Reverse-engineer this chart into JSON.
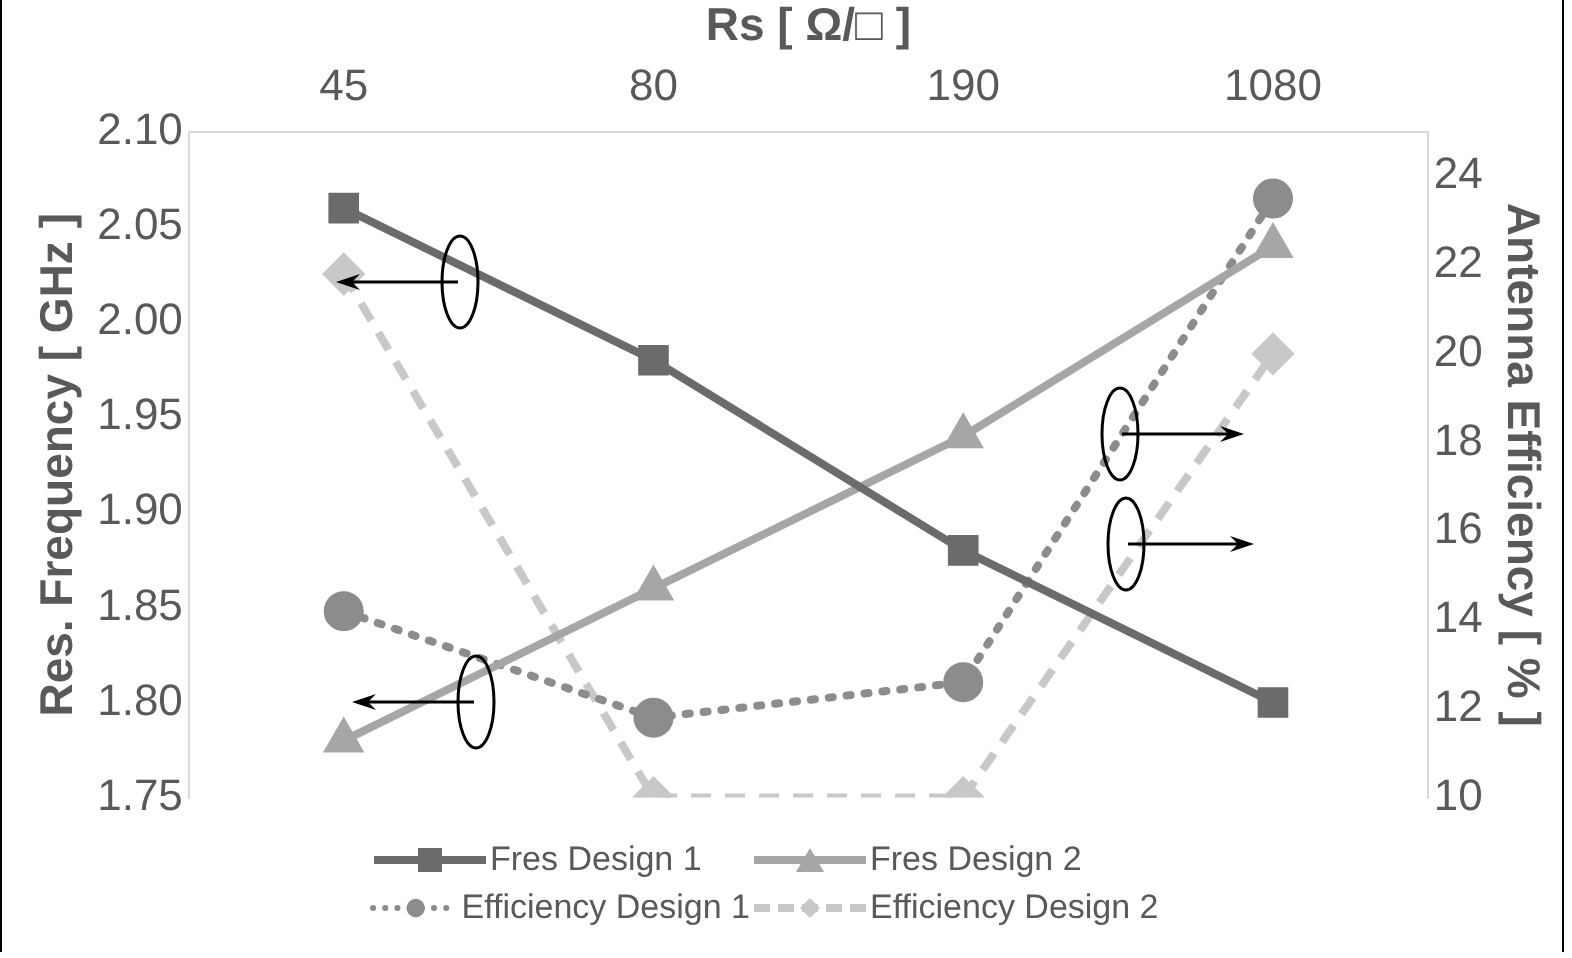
{
  "chart_data": {
    "type": "line",
    "x2label": "Rs [ Ω/□ ]",
    "ylabel": "Res. Frequency [ GHz ]",
    "y2label": "Antenna Efficiency [ % ]",
    "categories": [
      "45",
      "80",
      "190",
      "1080"
    ],
    "ylim": [
      1.75,
      2.1
    ],
    "yticks": [
      {
        "value": 1.75,
        "label": "1.75"
      },
      {
        "value": 1.8,
        "label": "1.80"
      },
      {
        "value": 1.85,
        "label": "1.85"
      },
      {
        "value": 1.9,
        "label": "1.90"
      },
      {
        "value": 1.95,
        "label": "1.95"
      },
      {
        "value": 2.0,
        "label": "2.00"
      },
      {
        "value": 2.05,
        "label": "2.05"
      },
      {
        "value": 2.1,
        "label": "2.10"
      }
    ],
    "y2lim": [
      10,
      25
    ],
    "y2ticks": [
      10,
      12,
      14,
      16,
      18,
      20,
      22,
      24
    ],
    "grid": false,
    "legend": "bottom",
    "series": [
      {
        "name": "Fres Design 1",
        "color": "#6b6b6b",
        "values": [
          2.06,
          1.98,
          1.88,
          1.8
        ],
        "marker": "square",
        "line_style": "solid"
      },
      {
        "name": "Fres Design 2",
        "color": "#a6a6a6",
        "values": [
          1.78,
          1.86,
          1.94,
          2.04
        ],
        "marker": "triangle",
        "line_style": "solid"
      },
      {
        "name": "Efficiency Design 1",
        "color": "#8c8c8c",
        "values": [
          14.2,
          11.8,
          12.6,
          23.5
        ],
        "axis": "y2",
        "marker": "circle",
        "line_style": "dotted"
      },
      {
        "name": "Efficiency Design 2",
        "color": "#c8c8c8",
        "values": [
          21.8,
          10,
          10,
          20
        ],
        "axis": "y2",
        "marker": "diamond",
        "line_style": "dashed"
      }
    ]
  }
}
